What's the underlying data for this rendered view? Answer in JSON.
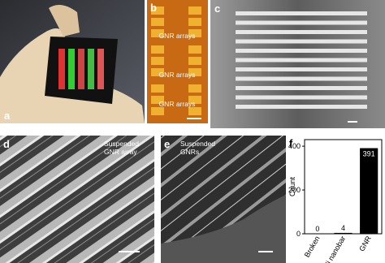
{
  "panels": {
    "a": {
      "label": "a"
    },
    "b": {
      "label": "b",
      "annotations": [
        "GNR arrays",
        "GNR arrays",
        "GNR arrays"
      ]
    },
    "c": {
      "label": "c"
    },
    "d": {
      "label": "d",
      "annotation": [
        "Suspended",
        "GNR array"
      ]
    },
    "e": {
      "label": "e",
      "annotation": [
        "Suspended",
        "GNRs"
      ]
    },
    "f": {
      "label": "f"
    }
  },
  "chart_data": {
    "type": "bar",
    "y_label": "Count",
    "categories": [
      "Broken",
      "Ni nanobar",
      "GNR"
    ],
    "values": [
      0,
      4,
      391
    ],
    "color": "#000000",
    "ylim": [
      0,
      430
    ],
    "yticks": [
      0,
      200,
      400
    ]
  }
}
